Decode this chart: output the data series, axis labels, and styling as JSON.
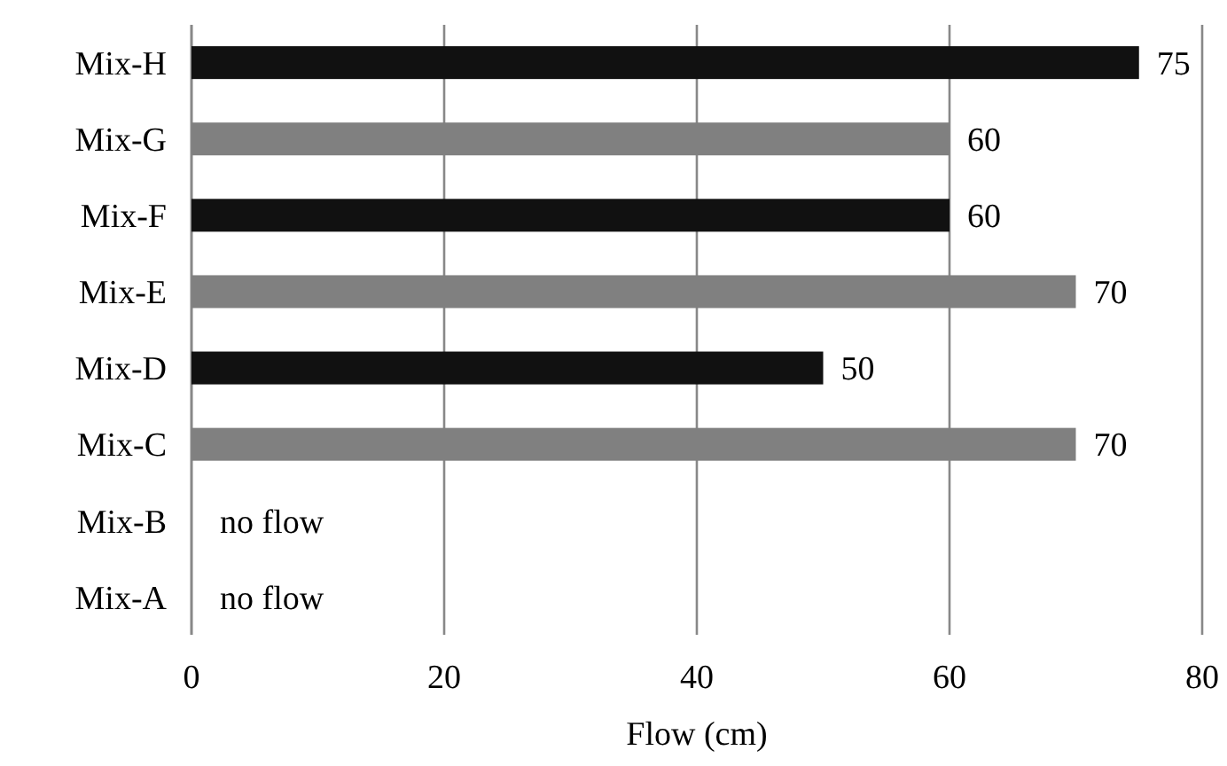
{
  "chart_data": {
    "type": "bar",
    "orientation": "horizontal",
    "xlabel": "Flow (cm)",
    "categories": [
      "Mix-H",
      "Mix-G",
      "Mix-F",
      "Mix-E",
      "Mix-D",
      "Mix-C",
      "Mix-B",
      "Mix-A"
    ],
    "values": [
      75,
      60,
      60,
      70,
      50,
      70,
      null,
      null
    ],
    "colors": [
      "#111111",
      "#808080",
      "#111111",
      "#808080",
      "#111111",
      "#808080",
      "#808080",
      "#808080"
    ],
    "value_labels": [
      "75",
      "60",
      "60",
      "70",
      "50",
      "70",
      "no flow",
      "no flow"
    ],
    "xlim": [
      0,
      80
    ],
    "xticks": [
      0,
      20,
      40,
      60,
      80
    ],
    "grid": "x"
  }
}
